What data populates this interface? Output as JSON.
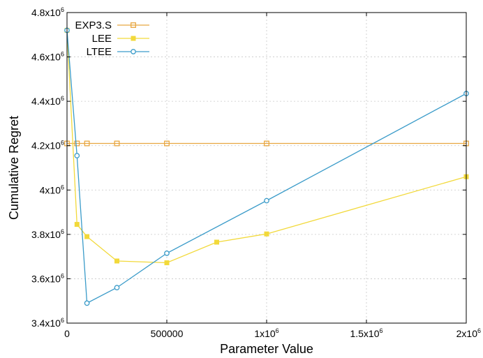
{
  "chart_data": {
    "type": "line",
    "xlabel": "Parameter Value",
    "ylabel": "Cumulative Regret",
    "xlim": [
      0,
      2000000
    ],
    "ylim": [
      3400000,
      4800000
    ],
    "grid": true,
    "legend_position": "top-left",
    "x_ticks": [
      {
        "value": 0,
        "label": "0"
      },
      {
        "value": 500000,
        "label": "500000"
      },
      {
        "value": 1000000,
        "label": "1x10",
        "exp": "6"
      },
      {
        "value": 1500000,
        "label": "1.5x10",
        "exp": "6"
      },
      {
        "value": 2000000,
        "label": "2x10",
        "exp": "6"
      }
    ],
    "y_ticks": [
      {
        "value": 3400000,
        "label": "3.4x10",
        "exp": "6"
      },
      {
        "value": 3600000,
        "label": "3.6x10",
        "exp": "6"
      },
      {
        "value": 3800000,
        "label": "3.8x10",
        "exp": "6"
      },
      {
        "value": 4000000,
        "label": "4x10",
        "exp": "6"
      },
      {
        "value": 4200000,
        "label": "4.2x10",
        "exp": "6"
      },
      {
        "value": 4400000,
        "label": "4.4x10",
        "exp": "6"
      },
      {
        "value": 4600000,
        "label": "4.6x10",
        "exp": "6"
      },
      {
        "value": 4800000,
        "label": "4.8x10",
        "exp": "6"
      }
    ],
    "series": [
      {
        "name": "EXP3.S",
        "color": "#e8a640",
        "marker": "open-square",
        "points": [
          [
            0,
            4210000
          ],
          [
            50000,
            4210000
          ],
          [
            100000,
            4210000
          ],
          [
            250000,
            4210000
          ],
          [
            500000,
            4210000
          ],
          [
            1000000,
            4210000
          ],
          [
            2000000,
            4210000
          ]
        ]
      },
      {
        "name": "LEE",
        "color": "#f2d93a",
        "marker": "filled-square",
        "points": [
          [
            0,
            4720000
          ],
          [
            50000,
            3845000
          ],
          [
            100000,
            3790000
          ],
          [
            250000,
            3680000
          ],
          [
            500000,
            3672000
          ],
          [
            750000,
            3765000
          ],
          [
            1000000,
            3802000
          ],
          [
            2000000,
            4060000
          ]
        ]
      },
      {
        "name": "LTEE",
        "color": "#3a9bc9",
        "marker": "open-circle",
        "points": [
          [
            0,
            4720000
          ],
          [
            50000,
            4155000
          ],
          [
            100000,
            3490000
          ],
          [
            250000,
            3560000
          ],
          [
            500000,
            3715000
          ],
          [
            1000000,
            3952000
          ],
          [
            2000000,
            4435000
          ]
        ]
      }
    ]
  }
}
